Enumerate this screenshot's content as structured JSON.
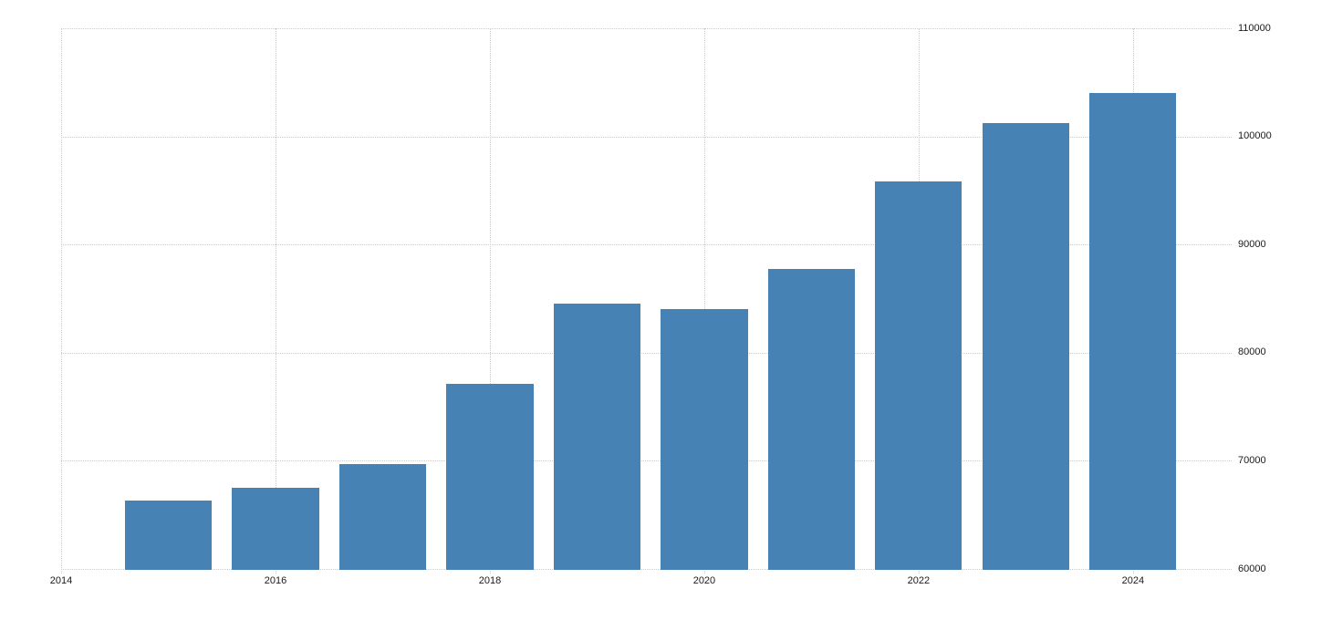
{
  "chart_data": {
    "type": "bar",
    "title": "",
    "xlabel": "",
    "ylabel": "",
    "categories": [
      2015,
      2016,
      2017,
      2018,
      2019,
      2020,
      2021,
      2022,
      2023,
      2024
    ],
    "values": [
      66300,
      67500,
      69700,
      77100,
      84500,
      84000,
      87700,
      95800,
      101200,
      104000
    ],
    "x_ticks": [
      2014,
      2016,
      2018,
      2020,
      2022,
      2024
    ],
    "y_ticks": [
      60000,
      70000,
      80000,
      90000,
      100000,
      110000
    ],
    "xlim": [
      2014,
      2024.92
    ],
    "ylim": [
      60000,
      110000
    ],
    "bar_width_years": 0.81,
    "bar_color": "#4682b4",
    "grid": "dotted",
    "gridline_color": "#cccccc",
    "tick_label_color": "#1a1a1a",
    "background_color": "#ffffff",
    "y_axis_position": "right",
    "legend": "none"
  }
}
